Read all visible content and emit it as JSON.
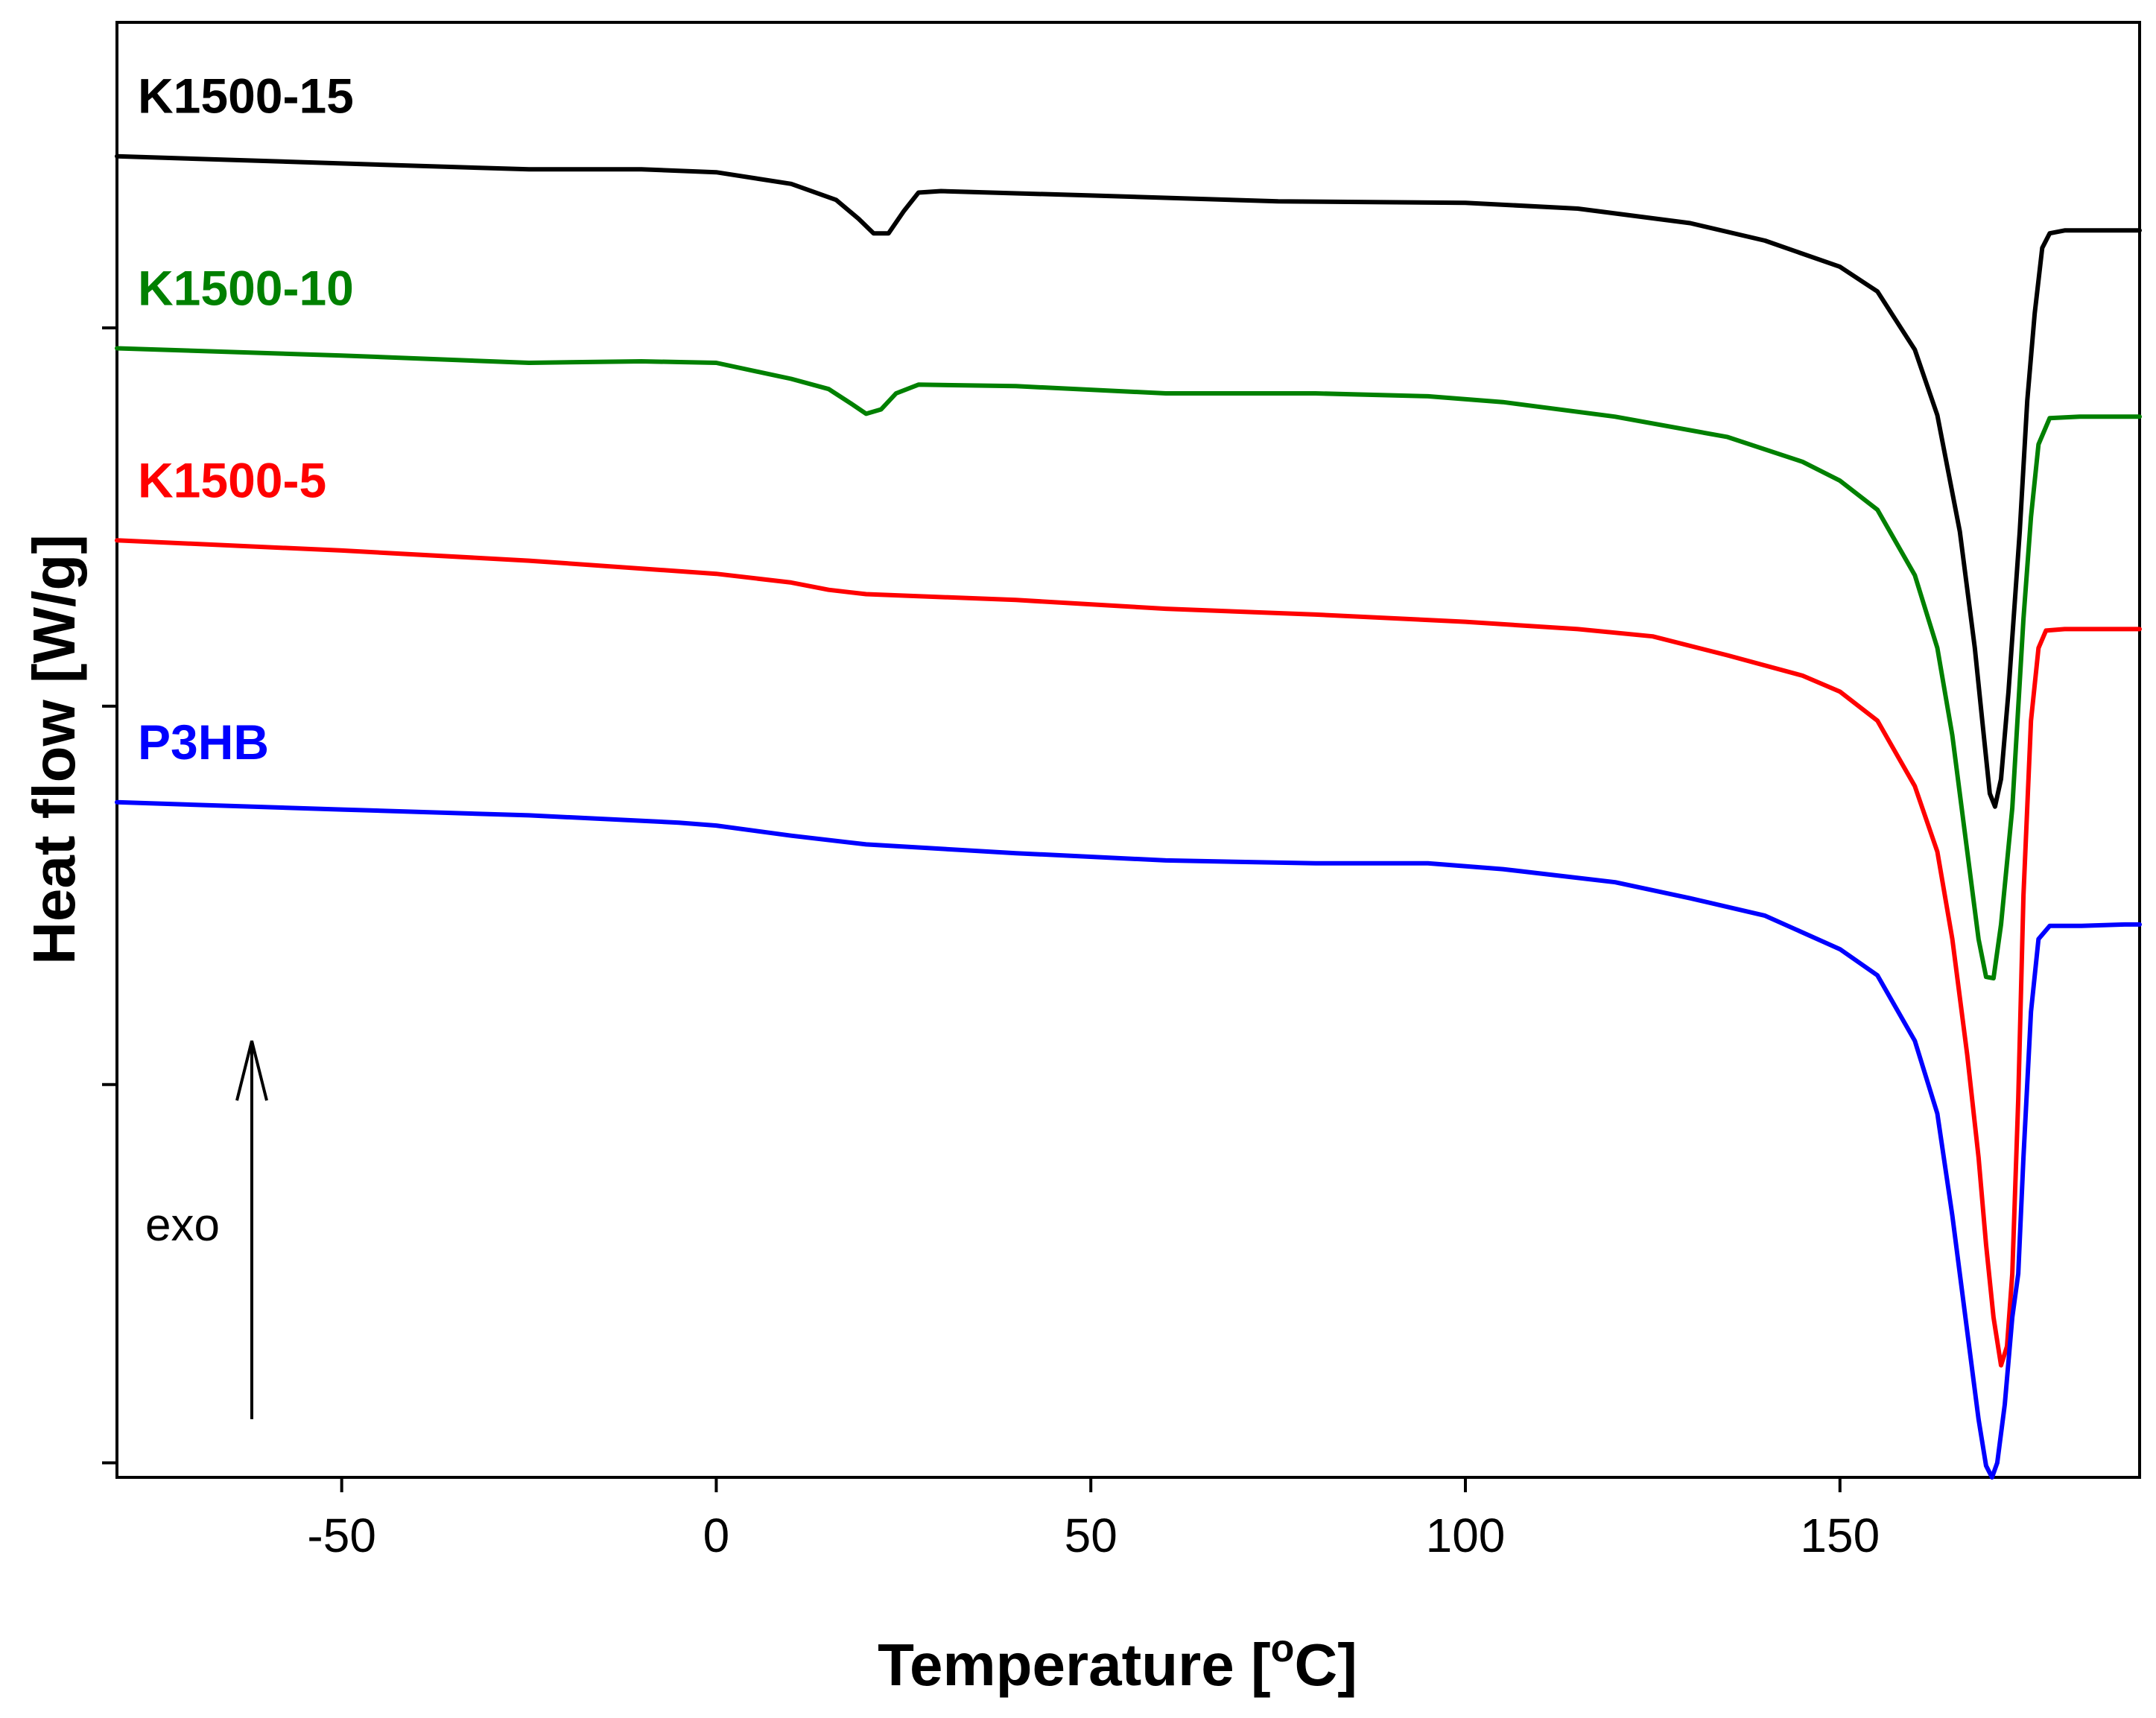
{
  "chart_data": {
    "type": "line",
    "title": "",
    "xlabel": "Temperature [°C]",
    "ylabel": "Heat flow [W/g]",
    "xlim": [
      -80,
      190
    ],
    "ylim": [
      0,
      100
    ],
    "x_ticks": [
      -50,
      0,
      50,
      100,
      150
    ],
    "x_tick_labels": [
      "-50",
      "0",
      "50",
      "100",
      "150"
    ],
    "y_ticks_unlabeled": [
      79,
      53,
      27,
      1
    ],
    "annotation": {
      "text": "exo",
      "arrow_from": [
        -62,
        4
      ],
      "arrow_to": [
        -62,
        30
      ],
      "direction": "up"
    },
    "series": [
      {
        "name": "K1500-15",
        "color": "#000000",
        "points": [
          [
            -80,
            90.8
          ],
          [
            -50,
            90.3
          ],
          [
            -25,
            89.9
          ],
          [
            -10,
            89.9
          ],
          [
            0,
            89.7
          ],
          [
            10,
            88.9
          ],
          [
            16,
            87.8
          ],
          [
            19,
            86.5
          ],
          [
            21,
            85.5
          ],
          [
            23,
            85.5
          ],
          [
            25,
            87.0
          ],
          [
            27,
            88.3
          ],
          [
            30,
            88.4
          ],
          [
            50,
            88.1
          ],
          [
            75,
            87.7
          ],
          [
            100,
            87.6
          ],
          [
            115,
            87.2
          ],
          [
            130,
            86.2
          ],
          [
            140,
            85.0
          ],
          [
            150,
            83.2
          ],
          [
            155,
            81.5
          ],
          [
            160,
            77.5
          ],
          [
            163,
            73.0
          ],
          [
            166,
            65.0
          ],
          [
            168,
            57.0
          ],
          [
            169,
            52.0
          ],
          [
            170,
            47.0
          ],
          [
            170.7,
            46.1
          ],
          [
            171.5,
            48.0
          ],
          [
            172.5,
            54.0
          ],
          [
            174,
            65.0
          ],
          [
            175,
            74.0
          ],
          [
            176,
            80.0
          ],
          [
            177,
            84.5
          ],
          [
            178,
            85.5
          ],
          [
            180,
            85.7
          ],
          [
            185,
            85.7
          ],
          [
            190,
            85.7
          ]
        ]
      },
      {
        "name": "K1500-10",
        "color": "#008000",
        "points": [
          [
            -80,
            77.6
          ],
          [
            -50,
            77.1
          ],
          [
            -25,
            76.6
          ],
          [
            -10,
            76.7
          ],
          [
            0,
            76.6
          ],
          [
            10,
            75.5
          ],
          [
            15,
            74.8
          ],
          [
            18,
            73.8
          ],
          [
            20,
            73.1
          ],
          [
            22,
            73.4
          ],
          [
            24,
            74.5
          ],
          [
            27,
            75.1
          ],
          [
            40,
            75.0
          ],
          [
            60,
            74.5
          ],
          [
            80,
            74.5
          ],
          [
            95,
            74.3
          ],
          [
            105,
            73.9
          ],
          [
            120,
            72.9
          ],
          [
            135,
            71.5
          ],
          [
            145,
            69.8
          ],
          [
            150,
            68.5
          ],
          [
            155,
            66.5
          ],
          [
            160,
            62.0
          ],
          [
            163,
            57.0
          ],
          [
            165,
            51.0
          ],
          [
            167,
            43.0
          ],
          [
            168.5,
            37.0
          ],
          [
            169.5,
            34.4
          ],
          [
            170.5,
            34.3
          ],
          [
            171.5,
            38.0
          ],
          [
            173,
            46.0
          ],
          [
            174.5,
            59.0
          ],
          [
            175.5,
            66.0
          ],
          [
            176.5,
            71.0
          ],
          [
            178,
            72.8
          ],
          [
            182,
            72.9
          ],
          [
            190,
            72.9
          ]
        ]
      },
      {
        "name": "K1500-5",
        "color": "#ff0000",
        "points": [
          [
            -80,
            64.4
          ],
          [
            -50,
            63.7
          ],
          [
            -25,
            63.0
          ],
          [
            0,
            62.1
          ],
          [
            10,
            61.5
          ],
          [
            15,
            61.0
          ],
          [
            20,
            60.7
          ],
          [
            40,
            60.3
          ],
          [
            60,
            59.7
          ],
          [
            80,
            59.3
          ],
          [
            100,
            58.8
          ],
          [
            115,
            58.3
          ],
          [
            125,
            57.8
          ],
          [
            135,
            56.5
          ],
          [
            145,
            55.1
          ],
          [
            150,
            54.0
          ],
          [
            155,
            52.0
          ],
          [
            160,
            47.5
          ],
          [
            163,
            43.0
          ],
          [
            165,
            37.0
          ],
          [
            167,
            29.0
          ],
          [
            168.5,
            22.0
          ],
          [
            169.5,
            16.0
          ],
          [
            170.5,
            11.0
          ],
          [
            171.5,
            7.7
          ],
          [
            172.3,
            9.0
          ],
          [
            173,
            14.0
          ],
          [
            173.8,
            26.0
          ],
          [
            174.5,
            40.0
          ],
          [
            175.5,
            52.0
          ],
          [
            176.5,
            57.0
          ],
          [
            177.5,
            58.2
          ],
          [
            180,
            58.3
          ],
          [
            190,
            58.3
          ]
        ]
      },
      {
        "name": "P3HB",
        "color": "#0000ff",
        "points": [
          [
            -80,
            46.4
          ],
          [
            -50,
            45.9
          ],
          [
            -25,
            45.5
          ],
          [
            -5,
            45.0
          ],
          [
            0,
            44.8
          ],
          [
            10,
            44.1
          ],
          [
            20,
            43.5
          ],
          [
            40,
            42.9
          ],
          [
            60,
            42.4
          ],
          [
            80,
            42.2
          ],
          [
            95,
            42.2
          ],
          [
            105,
            41.8
          ],
          [
            120,
            40.9
          ],
          [
            130,
            39.8
          ],
          [
            140,
            38.6
          ],
          [
            150,
            36.3
          ],
          [
            155,
            34.5
          ],
          [
            160,
            30.0
          ],
          [
            163,
            25.0
          ],
          [
            165,
            18.0
          ],
          [
            167,
            10.0
          ],
          [
            168.5,
            4.0
          ],
          [
            169.5,
            0.8
          ],
          [
            170.3,
            0.0
          ],
          [
            171,
            1.0
          ],
          [
            172,
            5.0
          ],
          [
            173,
            11.0
          ],
          [
            173.8,
            14.0
          ],
          [
            174.5,
            22.0
          ],
          [
            175.5,
            32.0
          ],
          [
            176.5,
            37.0
          ],
          [
            178,
            37.9
          ],
          [
            182,
            37.9
          ],
          [
            188,
            38.0
          ],
          [
            190,
            38.0
          ]
        ]
      }
    ]
  }
}
